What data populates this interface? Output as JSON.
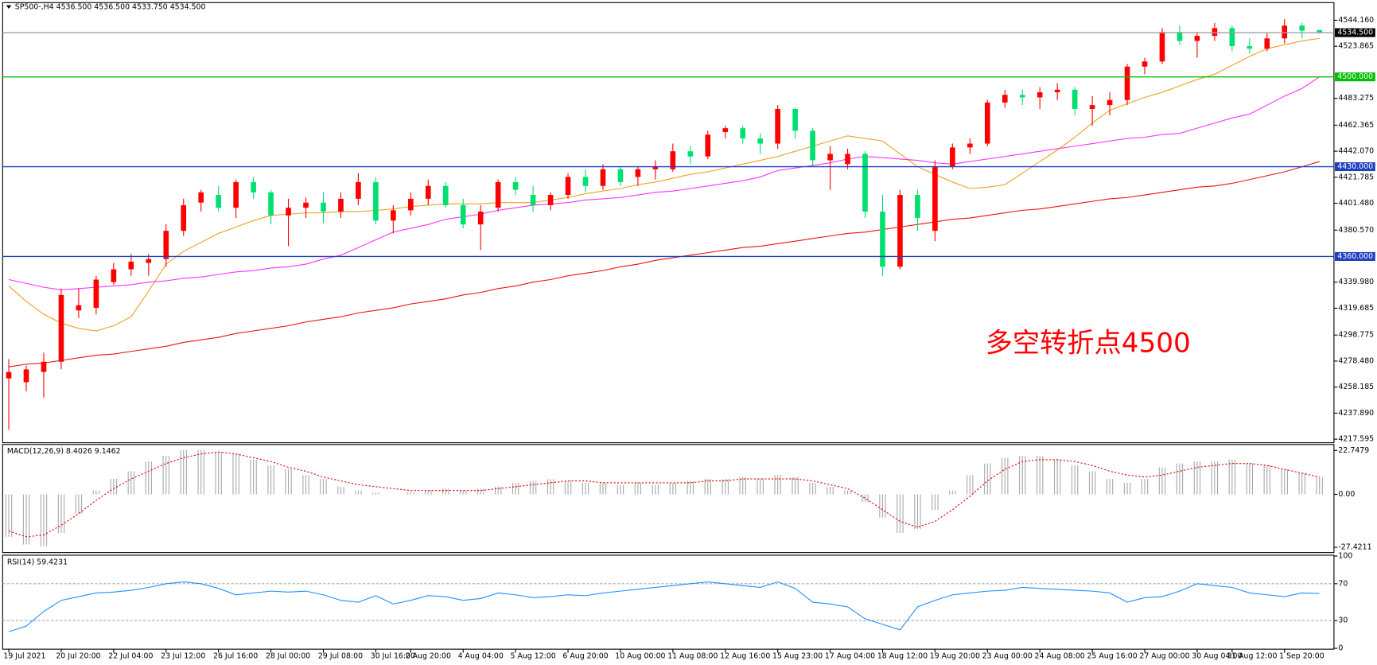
{
  "chart_data": [
    {
      "type": "candlestick",
      "title": "SP500-,H4  4536.500 4536.500 4533.750 4534.500",
      "up_color": "#ff0000",
      "down_color": "#00e070",
      "ylim": [
        4215.5,
        4557.2
      ],
      "yticks": [
        {
          "value": 4544.16,
          "label": "4544.160"
        },
        {
          "value": 4523.865,
          "label": "4523.865"
        },
        {
          "value": 4483.275,
          "label": "4483.275"
        },
        {
          "value": 4462.365,
          "label": "4462.365"
        },
        {
          "value": 4442.07,
          "label": "4442.070"
        },
        {
          "value": 4421.785,
          "label": "4421.785"
        },
        {
          "value": 4401.48,
          "label": "4401.480"
        },
        {
          "value": 4380.57,
          "label": "4380.570"
        },
        {
          "value": 4339.98,
          "label": "4339.980"
        },
        {
          "value": 4319.685,
          "label": "4319.685"
        },
        {
          "value": 4298.775,
          "label": "4298.775"
        },
        {
          "value": 4278.48,
          "label": "4278.480"
        },
        {
          "value": 4258.185,
          "label": "4258.185"
        },
        {
          "value": 4237.89,
          "label": "4237.890"
        },
        {
          "value": 4217.595,
          "label": "4217.595"
        }
      ],
      "levels": [
        {
          "value": 4534.5,
          "label": "4534.500",
          "color": "#a0a0a0",
          "box_color": "#000000"
        },
        {
          "value": 4500,
          "label": "4500.000",
          "color": "#00c000",
          "box_color": "#00c000"
        },
        {
          "value": 4430,
          "label": "4430.000",
          "color": "#2040c0",
          "box_color": "#2040c0"
        },
        {
          "value": 4360,
          "label": "4360.000",
          "color": "#2040c0",
          "box_color": "#2040c0"
        }
      ],
      "annotation": {
        "text": "多空转折点4500",
        "color": "#ff0000"
      },
      "categories": [
        "19 Jul 2021",
        null,
        null,
        "20 Jul 20:00",
        null,
        null,
        "22 Jul 04:00",
        null,
        null,
        "23 Jul 12:00",
        null,
        null,
        "26 Jul 16:00",
        null,
        null,
        "28 Jul 00:00",
        null,
        null,
        "29 Jul 08:00",
        null,
        null,
        "30 Jul 16:00",
        null,
        "2 Aug 20:00",
        null,
        null,
        "4 Aug 04:00",
        null,
        null,
        "5 Aug 12:00",
        null,
        null,
        "6 Aug 20:00",
        null,
        null,
        "10 Aug 00:00",
        null,
        null,
        "11 Aug 08:00",
        null,
        null,
        "12 Aug 16:00",
        null,
        null,
        "15 Aug 23:00",
        null,
        null,
        "17 Aug 04:00",
        null,
        null,
        "18 Aug 12:00",
        null,
        null,
        "19 Aug 20:00",
        null,
        null,
        "23 Aug 00:00",
        null,
        null,
        "24 Aug 08:00",
        null,
        null,
        "25 Aug 16:00",
        null,
        null,
        "27 Aug 00:00",
        null,
        null,
        "30 Aug 04:00",
        null,
        "31 Aug 12:00",
        null,
        null,
        "1 Sep 20:00",
        null,
        null
      ],
      "candles": [
        [
          4265,
          4280,
          4225,
          4270
        ],
        [
          4262,
          4275,
          4255,
          4272
        ],
        [
          4270,
          4285,
          4250,
          4278
        ],
        [
          4278,
          4335,
          4272,
          4330
        ],
        [
          4318,
          4335,
          4312,
          4322
        ],
        [
          4320,
          4345,
          4315,
          4342
        ],
        [
          4340,
          4355,
          4338,
          4350
        ],
        [
          4350,
          4362,
          4345,
          4356
        ],
        [
          4355,
          4362,
          4345,
          4358
        ],
        [
          4358,
          4385,
          4352,
          4380
        ],
        [
          4380,
          4405,
          4376,
          4400
        ],
        [
          4402,
          4412,
          4395,
          4410
        ],
        [
          4408,
          4415,
          4395,
          4398
        ],
        [
          4398,
          4420,
          4390,
          4418
        ],
        [
          4418,
          4422,
          4405,
          4410
        ],
        [
          4410,
          4412,
          4385,
          4392
        ],
        [
          4392,
          4405,
          4368,
          4398
        ],
        [
          4398,
          4406,
          4390,
          4402
        ],
        [
          4402,
          4410,
          4386,
          4395
        ],
        [
          4395,
          4410,
          4390,
          4405
        ],
        [
          4405,
          4425,
          4400,
          4418
        ],
        [
          4418,
          4422,
          4385,
          4388
        ],
        [
          4388,
          4400,
          4378,
          4396
        ],
        [
          4396,
          4410,
          4392,
          4405
        ],
        [
          4405,
          4420,
          4400,
          4415
        ],
        [
          4415,
          4418,
          4398,
          4400
        ],
        [
          4400,
          4405,
          4382,
          4385
        ],
        [
          4385,
          4400,
          4365,
          4395
        ],
        [
          4398,
          4420,
          4395,
          4418
        ],
        [
          4418,
          4422,
          4408,
          4412
        ],
        [
          4408,
          4415,
          4395,
          4400
        ],
        [
          4400,
          4410,
          4396,
          4408
        ],
        [
          4408,
          4425,
          4405,
          4422
        ],
        [
          4422,
          4428,
          4410,
          4415
        ],
        [
          4415,
          4432,
          4412,
          4428
        ],
        [
          4428,
          4430,
          4415,
          4418
        ],
        [
          4422,
          4430,
          4415,
          4428
        ],
        [
          4428,
          4435,
          4420,
          4430
        ],
        [
          4428,
          4448,
          4426,
          4442
        ],
        [
          4442,
          4446,
          4432,
          4438
        ],
        [
          4438,
          4458,
          4436,
          4455
        ],
        [
          4457,
          4462,
          4452,
          4460
        ],
        [
          4460,
          4462,
          4448,
          4452
        ],
        [
          4452,
          4456,
          4440,
          4448
        ],
        [
          4448,
          4478,
          4444,
          4475
        ],
        [
          4475,
          4476,
          4452,
          4458
        ],
        [
          4458,
          4460,
          4430,
          4435
        ],
        [
          4435,
          4446,
          4412,
          4440
        ],
        [
          4432,
          4444,
          4428,
          4440
        ],
        [
          4440,
          4442,
          4390,
          4395
        ],
        [
          4395,
          4408,
          4345,
          4352
        ],
        [
          4352,
          4412,
          4350,
          4408
        ],
        [
          4408,
          4412,
          4380,
          4390
        ],
        [
          4380,
          4435,
          4372,
          4430
        ],
        [
          4430,
          4448,
          4428,
          4445
        ],
        [
          4445,
          4452,
          4440,
          4448
        ],
        [
          4448,
          4482,
          4446,
          4480
        ],
        [
          4480,
          4490,
          4476,
          4486
        ],
        [
          4486,
          4490,
          4478,
          4484
        ],
        [
          4484,
          4492,
          4475,
          4488
        ],
        [
          4488,
          4495,
          4482,
          4490
        ],
        [
          4490,
          4492,
          4470,
          4475
        ],
        [
          4475,
          4485,
          4462,
          4478
        ],
        [
          4478,
          4488,
          4470,
          4482
        ],
        [
          4482,
          4510,
          4478,
          4508
        ],
        [
          4508,
          4515,
          4502,
          4512
        ],
        [
          4512,
          4538,
          4510,
          4535
        ],
        [
          4535,
          4540,
          4525,
          4528
        ],
        [
          4528,
          4535,
          4515,
          4532
        ],
        [
          4532,
          4542,
          4528,
          4538
        ],
        [
          4538,
          4540,
          4520,
          4524
        ],
        [
          4524,
          4530,
          4518,
          4522
        ],
        [
          4522,
          4534,
          4520,
          4530
        ],
        [
          4530,
          4545,
          4526,
          4540
        ],
        [
          4540,
          4542,
          4530,
          4536
        ],
        [
          4536.5,
          4536.5,
          4533.75,
          4534.5
        ]
      ],
      "series": [
        {
          "color": "#f0a020",
          "values": [
            4337,
            4325,
            4315,
            4308,
            4304,
            4302,
            4306,
            4313,
            4333,
            4354,
            4364,
            4371,
            4378,
            4383,
            4388,
            4392,
            4393,
            4394,
            4394,
            4395,
            4395,
            4396,
            4397,
            4399,
            4400,
            4401,
            4401,
            4401,
            4402,
            4402,
            4402,
            4404,
            4406,
            4409,
            4411,
            4413,
            4416,
            4418,
            4421,
            4424,
            4426,
            4429,
            4432,
            4435,
            4438,
            4442,
            4446,
            4450,
            4454,
            4452,
            4450,
            4440,
            4430,
            4424,
            4418,
            4413,
            4414,
            4416,
            4425,
            4434,
            4443,
            4453,
            4464,
            4474,
            4479,
            4484,
            4488,
            4493,
            4498,
            4502,
            4509,
            4516,
            4522,
            4525,
            4528,
            4530
          ]
        },
        {
          "color": "#ff30ff",
          "values": [
            4342,
            4339,
            4336,
            4334,
            4335,
            4336,
            4337,
            4338,
            4340,
            4341,
            4343,
            4344,
            4346,
            4348,
            4349,
            4351,
            4352,
            4354,
            4358,
            4361,
            4367,
            4373,
            4379,
            4382,
            4385,
            4389,
            4391,
            4393,
            4396,
            4398,
            4400,
            4401,
            4402,
            4404,
            4405,
            4406,
            4408,
            4410,
            4411,
            4413,
            4415,
            4417,
            4419,
            4422,
            4427,
            4429,
            4431,
            4433,
            4436,
            4438,
            4437,
            4436,
            4435,
            4433,
            4432,
            4434,
            4436,
            4438,
            4440,
            4442,
            4444,
            4446,
            4448,
            4450,
            4452,
            4453,
            4455,
            4456,
            4460,
            4464,
            4468,
            4471,
            4478,
            4485,
            4491,
            4500
          ]
        },
        {
          "color": "#ee1111",
          "values": [
            4274,
            4276,
            4277,
            4279,
            4281,
            4283,
            4284,
            4286,
            4288,
            4290,
            4293,
            4295,
            4297,
            4300,
            4302,
            4304,
            4306,
            4309,
            4311,
            4313,
            4316,
            4318,
            4320,
            4323,
            4325,
            4327,
            4330,
            4332,
            4335,
            4337,
            4340,
            4342,
            4345,
            4347,
            4349,
            4352,
            4354,
            4357,
            4359,
            4361,
            4363,
            4365,
            4367,
            4368,
            4370,
            4372,
            4374,
            4376,
            4378,
            4379,
            4381,
            4383,
            4385,
            4387,
            4389,
            4390,
            4392,
            4394,
            4396,
            4397,
            4399,
            4401,
            4403,
            4405,
            4406,
            4408,
            4410,
            4412,
            4414,
            4415,
            4417,
            4420,
            4423,
            4426,
            4430,
            4434
          ]
        }
      ]
    },
    {
      "type": "macd",
      "label": "MACD(12,26,9) 8.4026 9.1462",
      "ylim": [
        -29.7,
        25.4
      ],
      "yticks": [
        22.7479,
        {
          "value": 0,
          "label": "0.00"
        },
        -27.4211
      ],
      "series": [
        {
          "color": "#a8a8a8",
          "values": [
            -22,
            -26,
            -27,
            -20,
            -10,
            2,
            8,
            12,
            17,
            20,
            23,
            23,
            22,
            21,
            18,
            15,
            13,
            10,
            8,
            4,
            2,
            1,
            0,
            1,
            2,
            3,
            2,
            3,
            4,
            6,
            7,
            8,
            7,
            6,
            6,
            5,
            6,
            5,
            6,
            7,
            8,
            8,
            9,
            8,
            10,
            9,
            6,
            4,
            2,
            -4,
            -12,
            -20,
            -18,
            -8,
            2,
            10,
            16,
            19,
            20,
            20,
            18,
            15,
            12,
            8,
            6,
            8,
            14,
            16,
            17,
            17,
            18,
            16,
            15,
            13,
            11,
            9
          ]
        },
        {
          "color": "#e00000",
          "values": [
            -19,
            -22,
            -21,
            -16,
            -10,
            -3,
            3,
            8,
            12,
            16,
            19,
            21,
            22,
            21,
            19,
            17,
            14,
            12,
            9,
            7,
            5,
            4,
            3,
            2,
            2,
            2,
            2,
            2,
            3,
            4,
            5,
            6,
            7,
            7,
            6,
            6,
            6,
            6,
            6,
            6,
            7,
            7,
            8,
            8,
            8,
            8,
            7,
            5,
            3,
            -2,
            -8,
            -14,
            -17,
            -14,
            -8,
            -1,
            7,
            13,
            17,
            18,
            18,
            17,
            15,
            12,
            10,
            9,
            10,
            12,
            14,
            15,
            16,
            16,
            15,
            13,
            11,
            9
          ]
        }
      ]
    },
    {
      "type": "line",
      "label": "RSI(14) 59.4231",
      "ylim": [
        0,
        100
      ],
      "yticks": [
        100,
        70,
        30,
        0
      ],
      "levels": [
        70,
        30
      ],
      "series": [
        {
          "color": "#1e90ff",
          "values": [
            18,
            24,
            40,
            52,
            56,
            60,
            61,
            63,
            66,
            70,
            72,
            70,
            65,
            58,
            60,
            62,
            61,
            62,
            58,
            52,
            50,
            57,
            48,
            52,
            57,
            56,
            52,
            54,
            60,
            58,
            55,
            56,
            58,
            57,
            60,
            62,
            64,
            66,
            68,
            70,
            72,
            70,
            68,
            66,
            72,
            65,
            50,
            48,
            45,
            32,
            26,
            20,
            45,
            52,
            58,
            60,
            62,
            63,
            66,
            65,
            64,
            63,
            62,
            60,
            50,
            55,
            56,
            62,
            70,
            68,
            66,
            60,
            58,
            56,
            60,
            59.4231
          ]
        }
      ]
    }
  ]
}
